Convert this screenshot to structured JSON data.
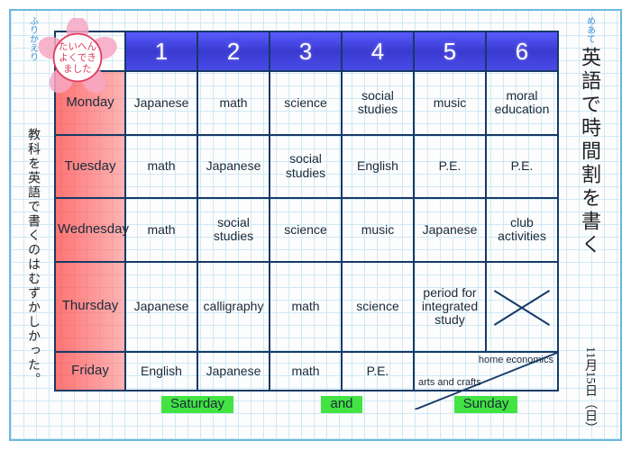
{
  "meta": {
    "goal_label": "めあて",
    "title_vertical": "英語で時間割を書く",
    "date": "11月15日（日）",
    "reflect_label": "ふりかえり",
    "reflection": "教科を英語で書くのはむずかしかった。"
  },
  "stamp": {
    "line1": "たいへん",
    "line2": "よくでき",
    "line3": "ました",
    "petal_color": "#f7a8c4",
    "text_color": "#e03a5a"
  },
  "schedule": {
    "periods": [
      "1",
      "2",
      "3",
      "4",
      "5",
      "6"
    ],
    "days": [
      "Monday",
      "Tuesday",
      "Wednesday",
      "Thursday",
      "Friday"
    ],
    "rows": [
      [
        "Japanese",
        "math",
        "science",
        "social studies",
        "music",
        "moral education"
      ],
      [
        "math",
        "Japanese",
        "social studies",
        "English",
        "P.E.",
        "P.E."
      ],
      [
        "math",
        "social studies",
        "science",
        "music",
        "Japanese",
        "club activities"
      ],
      [
        "Japanese",
        "calligraphy",
        "math",
        "science",
        "period for integrated study",
        "X"
      ],
      [
        "English",
        "Japanese",
        "math",
        "P.E.",
        "DIAG",
        "DIAG"
      ]
    ],
    "friday_diag": {
      "top": "home economics",
      "bottom": "arts and crafts"
    },
    "weekend": [
      "Saturday",
      "and",
      "Sunday"
    ]
  },
  "colors": {
    "header_bg": "#4a4ae8",
    "day_bg": "#ff6a6a",
    "grid": "#cfe9f5",
    "border": "#163a66",
    "highlight": "#42e342",
    "frame": "#6bb8e0"
  }
}
